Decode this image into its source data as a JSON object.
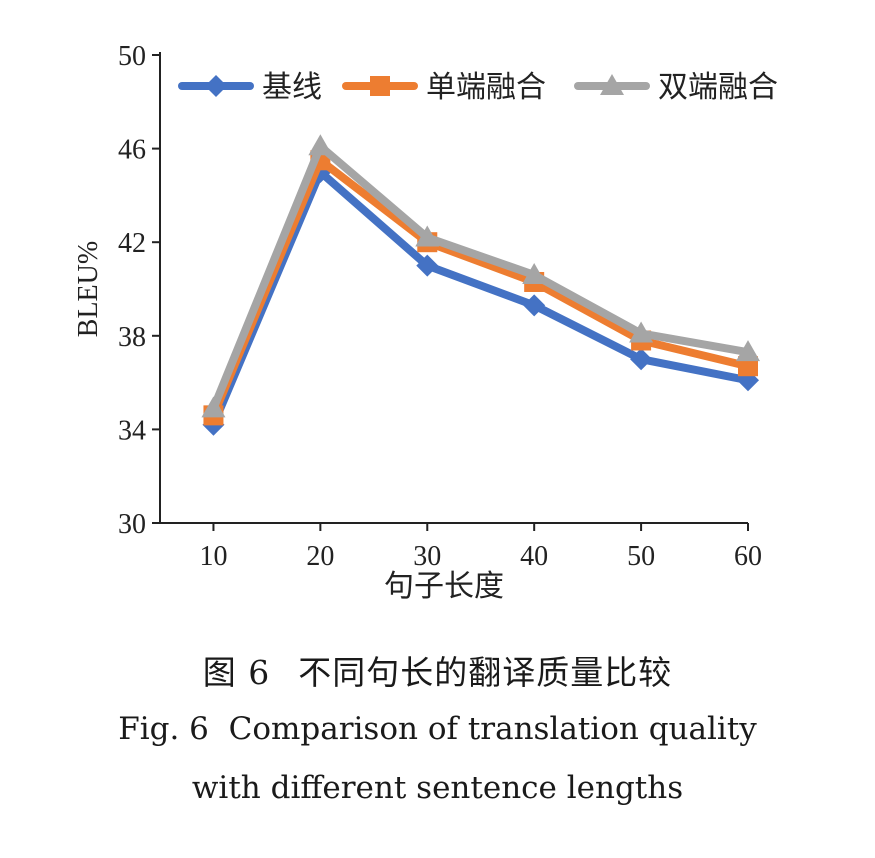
{
  "chart_data": {
    "type": "line",
    "x": [
      10,
      20,
      30,
      40,
      50,
      60
    ],
    "xlabel": "句子长度",
    "ylabel": "BLEU%",
    "ylim": [
      30,
      50
    ],
    "yticks": [
      30,
      34,
      38,
      42,
      46,
      50
    ],
    "grid": false,
    "legend_position": "top",
    "series": [
      {
        "name": "基线",
        "values": [
          34.2,
          45.0,
          41.0,
          39.3,
          37.0,
          36.1
        ],
        "color": "#4472C4",
        "marker": "diamond"
      },
      {
        "name": "单端融合",
        "values": [
          34.6,
          45.5,
          42.0,
          40.3,
          37.8,
          36.7
        ],
        "color": "#ED7D31",
        "marker": "square"
      },
      {
        "name": "双端融合",
        "values": [
          34.9,
          46.1,
          42.2,
          40.6,
          38.1,
          37.3
        ],
        "color": "#A5A5A5",
        "marker": "triangle"
      }
    ]
  },
  "caption": {
    "cn_label": "图 6",
    "cn_title": "不同句长的翻译质量比较",
    "en_line1": "Fig. 6  Comparison of translation quality",
    "en_line2": "with different sentence lengths"
  }
}
